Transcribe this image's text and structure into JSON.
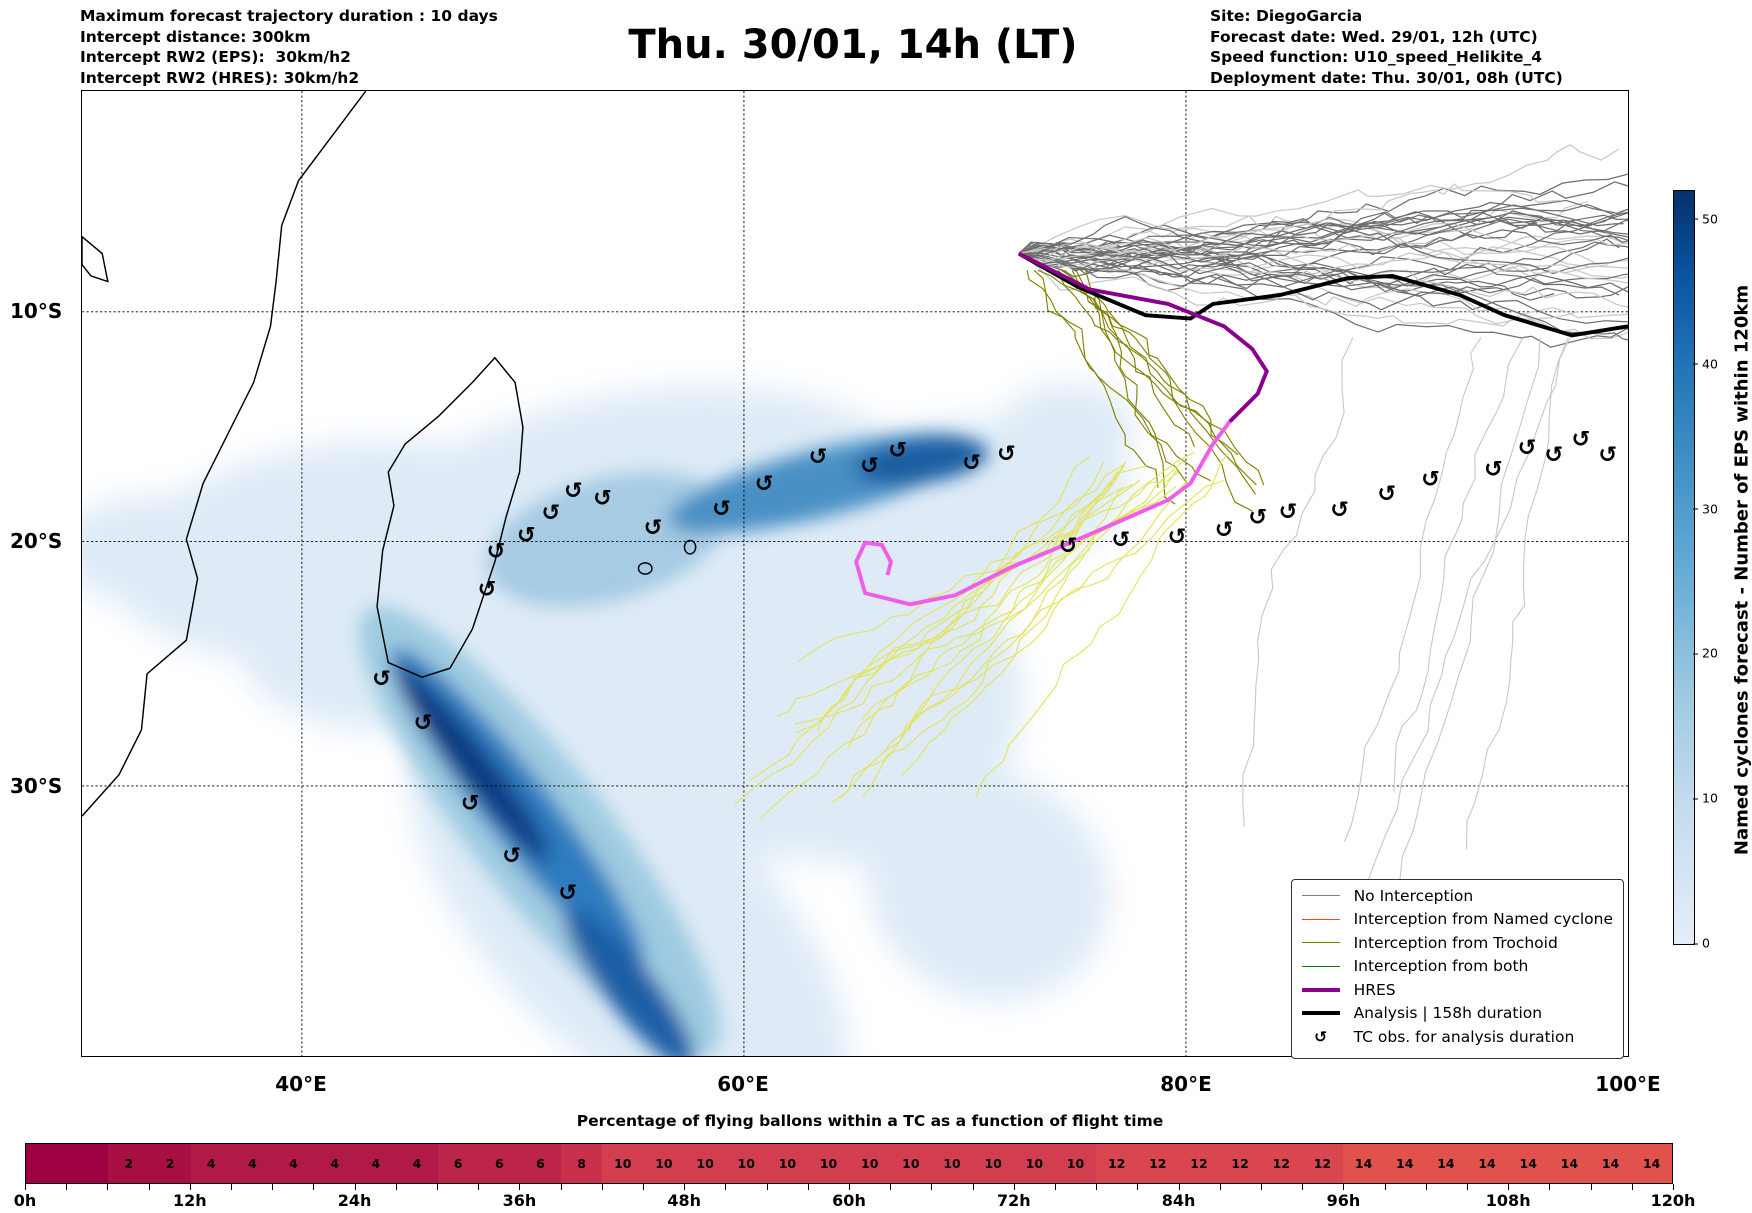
{
  "header": {
    "left": [
      "Maximum forecast trajectory duration : 10 days",
      "Intercept distance: 300km",
      "Intercept RW2 (EPS):  30km/h2",
      "Intercept RW2 (HRES): 30km/h2"
    ],
    "title": "Thu. 30/01, 14h (LT)",
    "right": [
      "Site: DiegoGarcia",
      "Forecast date: Wed. 29/01, 12h (UTC)",
      "Speed function: U10_speed_Helikite_4",
      "Deployment date: Thu. 30/01, 08h (UTC)"
    ]
  },
  "map": {
    "lon_labels": [
      "40°E",
      "60°E",
      "80°E",
      "100°E"
    ],
    "lat_labels": [
      "10°S",
      "20°S",
      "30°S"
    ]
  },
  "legend": [
    {
      "label": "No Interception",
      "color": "#808080"
    },
    {
      "label": "Interception from Named cyclone",
      "color": "#ff4500"
    },
    {
      "label": "Interception from Trochoid",
      "color": "#808000"
    },
    {
      "label": "Interception from both",
      "color": "#008000"
    },
    {
      "label": "HRES",
      "color": "#8b008b"
    },
    {
      "label": "Analysis | 158h duration",
      "color": "#000000"
    },
    {
      "label": "TC obs. for analysis duration",
      "icon": "cyclone-icon"
    }
  ],
  "colorbar": {
    "label": "Named cyclones forecast - Number of EPS within 120km",
    "ticks": [
      "0",
      "10",
      "20",
      "30",
      "40",
      "50"
    ],
    "range": [
      0,
      52
    ]
  },
  "chart_data": {
    "type": "heatmap",
    "title": "Thu. 30/01, 14h (LT)",
    "bottom_bar": {
      "title": "Percentage of flying ballons within a TC as a function of flight time",
      "ticks": [
        "0h",
        "12h",
        "24h",
        "36h",
        "48h",
        "60h",
        "72h",
        "84h",
        "96h",
        "108h",
        "120h"
      ],
      "step_hours": 3,
      "values": [
        0,
        0,
        2,
        2,
        4,
        4,
        4,
        4,
        4,
        4,
        6,
        6,
        6,
        8,
        10,
        10,
        10,
        10,
        10,
        10,
        10,
        10,
        10,
        10,
        10,
        10,
        12,
        12,
        12,
        12,
        12,
        12,
        14,
        14,
        14,
        14,
        14,
        14,
        14,
        14
      ],
      "labels": [
        "",
        "",
        "2",
        "2",
        "4",
        "4",
        "4",
        "4",
        "4",
        "4",
        "6",
        "6",
        "6",
        "8",
        "10",
        "10",
        "10",
        "10",
        "10",
        "10",
        "10",
        "10",
        "10",
        "10",
        "10",
        "10",
        "12",
        "12",
        "12",
        "12",
        "12",
        "12",
        "14",
        "14",
        "14",
        "14",
        "14",
        "14",
        "14",
        "14"
      ]
    },
    "colors": {
      "0": "#9e0142",
      "2": "#a80f44",
      "4": "#b11a47",
      "6": "#bd2449",
      "8": "#c9304c",
      "10": "#d33d50",
      "12": "#da464f",
      "14": "#e0524b"
    }
  }
}
